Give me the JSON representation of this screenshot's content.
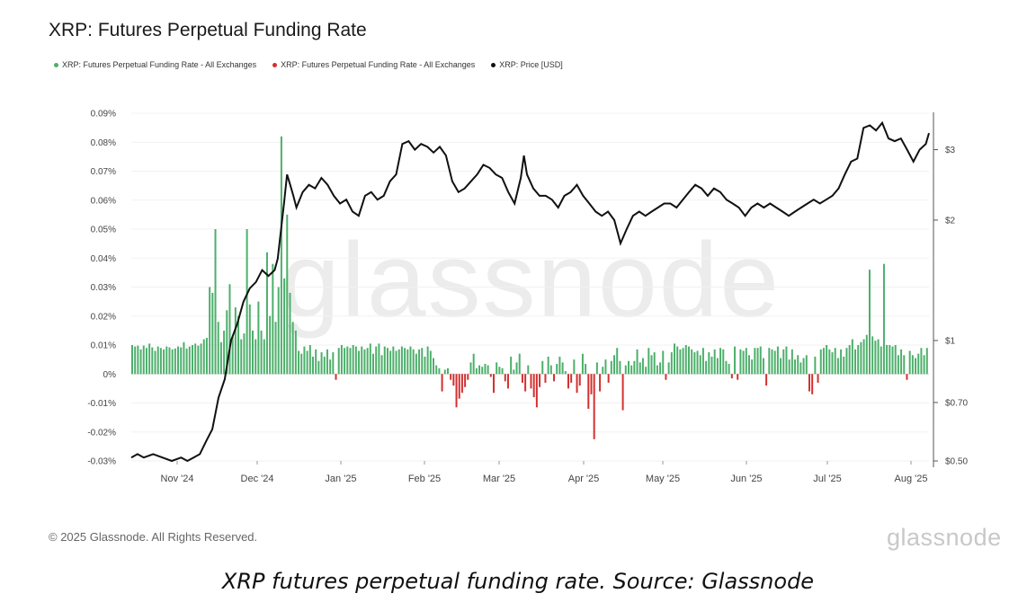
{
  "title": "XRP: Futures Perpetual Funding Rate",
  "legend": [
    {
      "label": "XRP: Futures Perpetual Funding Rate - All Exchanges",
      "color": "#4caf6a"
    },
    {
      "label": "XRP: Futures Perpetual Funding Rate - All Exchanges",
      "color": "#d32f2f"
    },
    {
      "label": "XRP: Price [USD]",
      "color": "#111111"
    }
  ],
  "watermark": "glassnode",
  "copyright": "© 2025 Glassnode. All Rights Reserved.",
  "brand": "glassnode",
  "caption": "XRP futures perpetual funding rate. Source: Glassnode",
  "chart_data": {
    "type": "bar",
    "x_ticks": [
      "Nov '24",
      "Dec '24",
      "Jan '25",
      "Feb '25",
      "Mar '25",
      "Apr '25",
      "May '25",
      "Jun '25",
      "Jul '25",
      "Aug '25"
    ],
    "y_left": {
      "range": [
        -0.03,
        0.09
      ],
      "ticks": [
        0.09,
        0.08,
        0.07,
        0.06,
        0.05,
        0.04,
        0.03,
        0.02,
        0.01,
        0,
        -0.01,
        -0.02,
        -0.03
      ],
      "tick_labels": [
        "0.09%",
        "0.08%",
        "0.07%",
        "0.06%",
        "0.05%",
        "0.04%",
        "0.03%",
        "0.02%",
        "0.01%",
        "0%",
        "-0.01%",
        "-0.02%",
        "-0.03%"
      ]
    },
    "y_right": {
      "scale": "log",
      "range": [
        0.5,
        3.7
      ],
      "ticks": [
        3,
        2,
        1,
        0.7,
        0.5
      ],
      "tick_labels": [
        "$3",
        "$2",
        "$1",
        "$0.70",
        "$0.50"
      ]
    },
    "colors": {
      "positive": "#4caf6a",
      "negative": "#d32f2f",
      "price": "#111111"
    },
    "funding_rate_pct": [
      0.01,
      0.0095,
      0.0098,
      0.0085,
      0.0098,
      0.009,
      0.0105,
      0.0092,
      0.008,
      0.0095,
      0.009,
      0.0085,
      0.0095,
      0.0092,
      0.0085,
      0.0088,
      0.0095,
      0.0092,
      0.011,
      0.0088,
      0.0095,
      0.01,
      0.0105,
      0.0098,
      0.0105,
      0.012,
      0.0125,
      0.03,
      0.028,
      0.05,
      0.018,
      0.011,
      0.015,
      0.022,
      0.031,
      0.013,
      0.023,
      0.02,
      0.012,
      0.014,
      0.05,
      0.024,
      0.015,
      0.012,
      0.025,
      0.015,
      0.012,
      0.042,
      0.02,
      0.038,
      0.018,
      0.03,
      0.082,
      0.033,
      0.055,
      0.028,
      0.018,
      0.015,
      0.008,
      0.007,
      0.0095,
      0.008,
      0.01,
      0.006,
      0.0085,
      0.0045,
      0.0075,
      0.006,
      0.0085,
      0.005,
      0.0075,
      -0.002,
      0.009,
      0.01,
      0.009,
      0.0095,
      0.009,
      0.01,
      0.0095,
      0.008,
      0.0095,
      0.0085,
      0.009,
      0.0105,
      0.007,
      0.0095,
      0.0105,
      0.0065,
      0.0095,
      0.009,
      0.008,
      0.0095,
      0.008,
      0.0085,
      0.0095,
      0.009,
      0.0085,
      0.0095,
      0.0085,
      0.007,
      0.0085,
      0.009,
      0.006,
      0.0095,
      0.008,
      0.0055,
      0.003,
      0.002,
      -0.006,
      0.0015,
      0.002,
      -0.002,
      -0.004,
      -0.0115,
      -0.0085,
      -0.0065,
      -0.0045,
      -0.002,
      0.004,
      0.007,
      0.002,
      0.003,
      0.0025,
      0.0035,
      0.003,
      -0.001,
      -0.0065,
      0.004,
      0.0025,
      0.002,
      -0.0025,
      -0.005,
      0.006,
      0.0015,
      0.004,
      0.007,
      -0.003,
      -0.006,
      0.003,
      -0.005,
      -0.008,
      -0.0115,
      -0.0045,
      0.0045,
      -0.003,
      0.006,
      0.003,
      -0.0025,
      0.0035,
      0.006,
      0.004,
      0.001,
      -0.005,
      -0.003,
      0.005,
      -0.0065,
      -0.004,
      0.007,
      0.0035,
      -0.012,
      -0.007,
      -0.0225,
      0.004,
      -0.006,
      0.0025,
      0.005,
      -0.003,
      0.0045,
      0.0065,
      0.009,
      0.0045,
      -0.0125,
      0.003,
      0.0045,
      0.003,
      0.0045,
      0.0085,
      0.004,
      0.0055,
      0.0025,
      0.009,
      0.0065,
      0.0075,
      0.003,
      0.004,
      0.008,
      -0.002,
      0.004,
      0.0075,
      0.0105,
      0.0095,
      0.0085,
      0.009,
      0.01,
      0.0095,
      0.0085,
      0.0075,
      0.008,
      0.0065,
      0.009,
      0.0045,
      0.0075,
      0.006,
      0.0085,
      0.0055,
      0.009,
      0.0085,
      0.0045,
      0.0035,
      -0.0015,
      0.0095,
      -0.002,
      0.0085,
      0.008,
      0.009,
      0.0065,
      0.005,
      0.009,
      0.009,
      0.0095,
      0.0055,
      -0.004,
      0.009,
      0.0085,
      0.008,
      0.0095,
      0.0055,
      0.0085,
      0.0095,
      0.005,
      0.0085,
      0.005,
      0.0065,
      0.004,
      0.0055,
      0.0065,
      -0.006,
      -0.007,
      0.006,
      -0.003,
      0.0085,
      0.009,
      0.01,
      0.0085,
      0.0075,
      0.009,
      0.0055,
      0.0085,
      0.006,
      0.009,
      0.01,
      0.012,
      0.0085,
      0.01,
      0.011,
      0.012,
      0.0135,
      0.036,
      0.013,
      0.0115,
      0.012,
      0.0095,
      0.038,
      0.01,
      0.01,
      0.0095,
      0.01,
      0.0065,
      0.0085,
      0.0065,
      -0.002,
      0.008,
      0.0065,
      0.0055,
      0.007,
      0.009,
      0.0065,
      0.009
    ],
    "price_usd": [
      [
        0,
        0.51
      ],
      [
        2,
        0.52
      ],
      [
        4,
        0.51
      ],
      [
        7,
        0.52
      ],
      [
        10,
        0.51
      ],
      [
        13,
        0.5
      ],
      [
        16,
        0.51
      ],
      [
        18,
        0.5
      ],
      [
        20,
        0.51
      ],
      [
        22,
        0.52
      ],
      [
        24,
        0.56
      ],
      [
        26,
        0.6
      ],
      [
        28,
        0.72
      ],
      [
        30,
        0.8
      ],
      [
        32,
        1.0
      ],
      [
        34,
        1.1
      ],
      [
        36,
        1.25
      ],
      [
        38,
        1.35
      ],
      [
        40,
        1.4
      ],
      [
        42,
        1.5
      ],
      [
        44,
        1.45
      ],
      [
        46,
        1.5
      ],
      [
        47,
        1.6
      ],
      [
        49,
        2.2
      ],
      [
        50,
        2.6
      ],
      [
        51,
        2.45
      ],
      [
        52,
        2.3
      ],
      [
        53,
        2.15
      ],
      [
        55,
        2.35
      ],
      [
        57,
        2.45
      ],
      [
        59,
        2.4
      ],
      [
        61,
        2.55
      ],
      [
        63,
        2.45
      ],
      [
        65,
        2.3
      ],
      [
        67,
        2.2
      ],
      [
        69,
        2.25
      ],
      [
        71,
        2.1
      ],
      [
        73,
        2.05
      ],
      [
        75,
        2.3
      ],
      [
        77,
        2.35
      ],
      [
        79,
        2.25
      ],
      [
        81,
        2.3
      ],
      [
        83,
        2.5
      ],
      [
        85,
        2.6
      ],
      [
        87,
        3.1
      ],
      [
        89,
        3.15
      ],
      [
        91,
        3.0
      ],
      [
        93,
        3.1
      ],
      [
        95,
        3.05
      ],
      [
        97,
        2.95
      ],
      [
        99,
        3.05
      ],
      [
        101,
        2.9
      ],
      [
        103,
        2.5
      ],
      [
        105,
        2.35
      ],
      [
        107,
        2.4
      ],
      [
        109,
        2.5
      ],
      [
        111,
        2.6
      ],
      [
        113,
        2.75
      ],
      [
        115,
        2.7
      ],
      [
        117,
        2.6
      ],
      [
        119,
        2.55
      ],
      [
        121,
        2.35
      ],
      [
        123,
        2.2
      ],
      [
        125,
        2.55
      ],
      [
        126,
        2.9
      ],
      [
        127,
        2.6
      ],
      [
        129,
        2.4
      ],
      [
        131,
        2.3
      ],
      [
        133,
        2.3
      ],
      [
        135,
        2.25
      ],
      [
        137,
        2.15
      ],
      [
        139,
        2.3
      ],
      [
        141,
        2.35
      ],
      [
        143,
        2.45
      ],
      [
        145,
        2.3
      ],
      [
        147,
        2.2
      ],
      [
        149,
        2.1
      ],
      [
        151,
        2.05
      ],
      [
        153,
        2.1
      ],
      [
        155,
        2.0
      ],
      [
        157,
        1.75
      ],
      [
        159,
        1.9
      ],
      [
        161,
        2.05
      ],
      [
        163,
        2.1
      ],
      [
        165,
        2.05
      ],
      [
        167,
        2.1
      ],
      [
        169,
        2.15
      ],
      [
        171,
        2.2
      ],
      [
        173,
        2.2
      ],
      [
        175,
        2.15
      ],
      [
        177,
        2.25
      ],
      [
        179,
        2.35
      ],
      [
        181,
        2.45
      ],
      [
        183,
        2.4
      ],
      [
        185,
        2.3
      ],
      [
        187,
        2.4
      ],
      [
        189,
        2.35
      ],
      [
        191,
        2.25
      ],
      [
        193,
        2.2
      ],
      [
        195,
        2.15
      ],
      [
        197,
        2.05
      ],
      [
        199,
        2.15
      ],
      [
        201,
        2.2
      ],
      [
        203,
        2.15
      ],
      [
        205,
        2.2
      ],
      [
        207,
        2.15
      ],
      [
        209,
        2.1
      ],
      [
        211,
        2.05
      ],
      [
        213,
        2.1
      ],
      [
        215,
        2.15
      ],
      [
        217,
        2.2
      ],
      [
        219,
        2.25
      ],
      [
        221,
        2.2
      ],
      [
        223,
        2.25
      ],
      [
        225,
        2.3
      ],
      [
        227,
        2.4
      ],
      [
        229,
        2.6
      ],
      [
        231,
        2.8
      ],
      [
        233,
        2.85
      ],
      [
        235,
        3.4
      ],
      [
        237,
        3.45
      ],
      [
        239,
        3.35
      ],
      [
        241,
        3.5
      ],
      [
        243,
        3.2
      ],
      [
        245,
        3.15
      ],
      [
        247,
        3.2
      ],
      [
        249,
        3.0
      ],
      [
        251,
        2.8
      ],
      [
        253,
        3.0
      ],
      [
        255,
        3.1
      ],
      [
        256,
        3.3
      ]
    ],
    "price_points_per_bar": 1
  }
}
